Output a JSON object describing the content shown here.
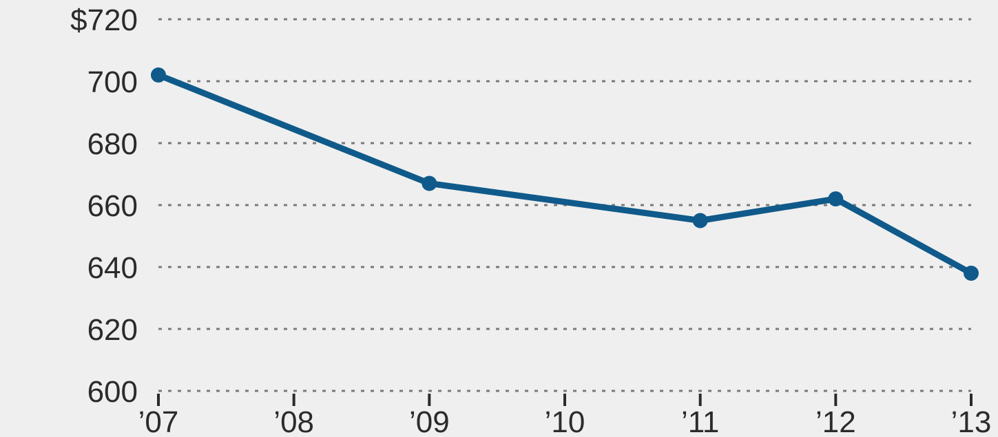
{
  "chart_data": {
    "type": "line",
    "title": "",
    "xlabel": "",
    "ylabel": "",
    "categories": [
      "’07",
      "’08",
      "’09",
      "’10",
      "’11",
      "’12",
      "’13"
    ],
    "series": [
      {
        "x": [
          "’07",
          "’09",
          "’11",
          "’12",
          "’13"
        ],
        "values": [
          702,
          667,
          655,
          662,
          638
        ]
      }
    ],
    "y_ticks": [
      600,
      620,
      640,
      660,
      680,
      700,
      720
    ],
    "y_tick_labels": [
      "600",
      "620",
      "640",
      "660",
      "680",
      "700",
      "$720"
    ],
    "ylim": [
      600,
      720
    ],
    "grid": true,
    "grid_style": "dotted",
    "line_color": "#0f5a8a",
    "background": "#efefef",
    "text_color": "#2b2b2b"
  }
}
